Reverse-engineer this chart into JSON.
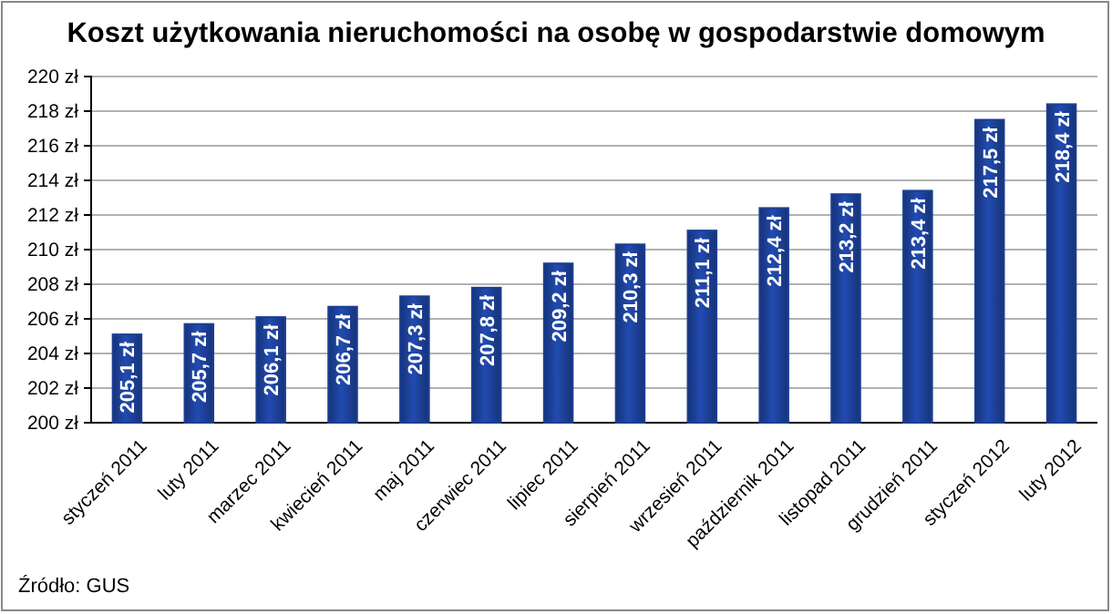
{
  "chart_data": {
    "type": "bar",
    "title": "Koszt użytkowania nieruchomości na osobę w gospodarstwie domowym",
    "categories": [
      "styczeń 2011",
      "luty 2011",
      "marzec 2011",
      "kwiecień 2011",
      "maj 2011",
      "czerwiec 2011",
      "lipiec 2011",
      "sierpień 2011",
      "wrzesień 2011",
      "październik 2011",
      "listopad 2011",
      "grudzień 2011",
      "styczeń 2012",
      "luty 2012"
    ],
    "values": [
      205.1,
      205.7,
      206.1,
      206.7,
      207.3,
      207.8,
      209.2,
      210.3,
      211.1,
      212.4,
      213.2,
      213.4,
      217.5,
      218.4
    ],
    "value_labels": [
      "205,1 zł",
      "205,7 zł",
      "206,1 zł",
      "206,7 zł",
      "207,3 zł",
      "207,8 zł",
      "209,2 zł",
      "210,3 zł",
      "211,1 zł",
      "212,4 zł",
      "213,2 zł",
      "213,4 zł",
      "217,5 zł",
      "218,4 zł"
    ],
    "color": "#1c3f94",
    "ylim": [
      200,
      220
    ],
    "yticks": [
      {
        "value": 200,
        "label": "200 zł"
      },
      {
        "value": 202,
        "label": "202 zł"
      },
      {
        "value": 204,
        "label": "204 zł"
      },
      {
        "value": 206,
        "label": "206 zł"
      },
      {
        "value": 208,
        "label": "208 zł"
      },
      {
        "value": 210,
        "label": "210 zł"
      },
      {
        "value": 212,
        "label": "212 zł"
      },
      {
        "value": 214,
        "label": "214 zł"
      },
      {
        "value": 216,
        "label": "216 zł"
      },
      {
        "value": 218,
        "label": "218 zł"
      },
      {
        "value": 220,
        "label": "220 zł"
      }
    ],
    "grid": "y",
    "annotations": [
      "Źródło: GUS"
    ]
  }
}
